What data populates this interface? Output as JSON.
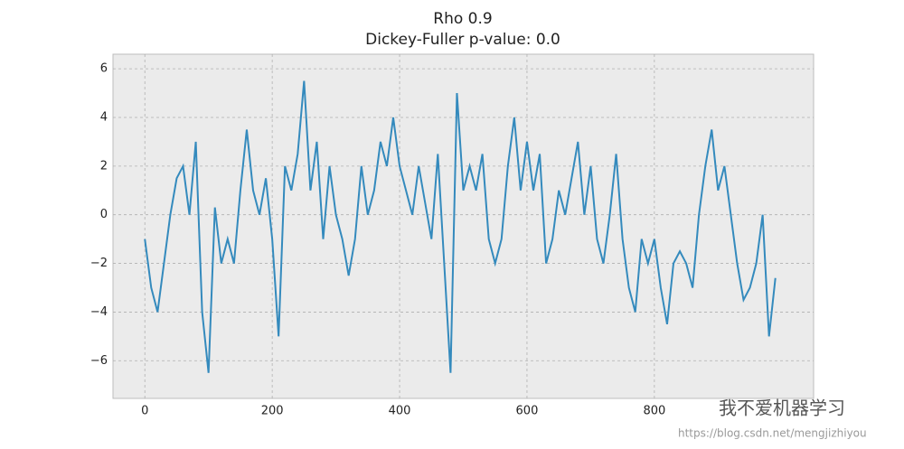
{
  "chart_data": {
    "type": "line",
    "title": "Rho 0.9",
    "subtitle": "Dickey-Fuller p-value: 0.0",
    "x": [
      0,
      10,
      20,
      30,
      40,
      50,
      60,
      70,
      80,
      90,
      100,
      110,
      120,
      130,
      140,
      150,
      160,
      170,
      180,
      190,
      200,
      210,
      220,
      230,
      240,
      250,
      260,
      270,
      280,
      290,
      300,
      310,
      320,
      330,
      340,
      350,
      360,
      370,
      380,
      390,
      400,
      410,
      420,
      430,
      440,
      450,
      460,
      470,
      480,
      490,
      500,
      510,
      520,
      530,
      540,
      550,
      560,
      570,
      580,
      590,
      600,
      610,
      620,
      630,
      640,
      650,
      660,
      670,
      680,
      690,
      700,
      710,
      720,
      730,
      740,
      750,
      760,
      770,
      780,
      790,
      800,
      810,
      820,
      830,
      840,
      850,
      860,
      870,
      880,
      890,
      900,
      910,
      920,
      930,
      940,
      950,
      960,
      970,
      980,
      990
    ],
    "series": [
      {
        "name": "Rho 0.9",
        "color": "#348abd",
        "values": [
          -1,
          -3,
          -4,
          -2,
          0,
          1.5,
          2,
          0,
          3,
          -4,
          -6.5,
          0.3,
          -2,
          -1,
          -2,
          1,
          3.5,
          1,
          0,
          1.5,
          -1,
          -5,
          2,
          1,
          2.5,
          5.5,
          1,
          3,
          -1,
          2,
          0,
          -1,
          -2.5,
          -1,
          2,
          0,
          1,
          3,
          2,
          4,
          2,
          1,
          0,
          2,
          0.5,
          -1,
          2.5,
          -2,
          -6.5,
          5,
          1,
          2,
          1,
          2.5,
          -1,
          -2,
          -1,
          2,
          4,
          1,
          3,
          1,
          2.5,
          -2,
          -1,
          1,
          0,
          1.5,
          3,
          0,
          2,
          -1,
          -2,
          0,
          2.5,
          -1,
          -3,
          -4,
          -1,
          -2,
          -1,
          -3,
          -4.5,
          -2,
          -1.5,
          -2,
          -3,
          0,
          2,
          3.5,
          1,
          2,
          0,
          -2,
          -3.5,
          -3,
          -2,
          0,
          -5,
          -2.6
        ]
      }
    ],
    "xlim": [
      -50,
      1050
    ],
    "ylim": [
      -7.55,
      6.6
    ],
    "xticks": [
      0,
      200,
      400,
      600,
      800
    ],
    "yticks": [
      {
        "value": -6,
        "label": "−6"
      },
      {
        "value": -4,
        "label": "−4"
      },
      {
        "value": -2,
        "label": "−2"
      },
      0,
      2,
      4,
      6
    ],
    "grid": true,
    "annotations": [
      "我不爱机器学习",
      "https://blog.csdn.net/mengjizhiyou"
    ]
  }
}
